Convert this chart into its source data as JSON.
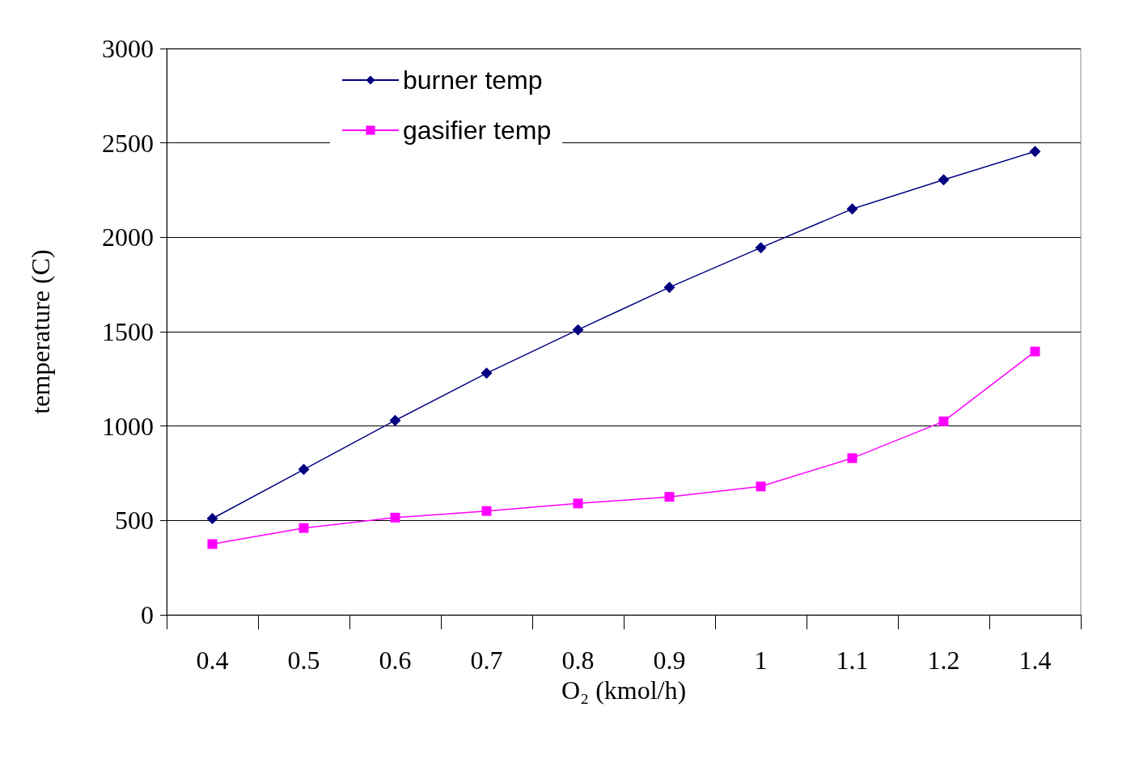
{
  "chart_data": {
    "type": "line",
    "xlabel": "O₂ (kmol/h)",
    "ylabel": "temperature (C)",
    "categories": [
      "0.4",
      "0.5",
      "0.6",
      "0.7",
      "0.8",
      "0.9",
      "1",
      "1.1",
      "1.2",
      "1.4"
    ],
    "series": [
      {
        "name": "burner temp",
        "color": "#000080",
        "marker": "diamond",
        "values": [
          510,
          770,
          1030,
          1280,
          1510,
          1735,
          1945,
          2150,
          2305,
          2455
        ]
      },
      {
        "name": "gasifier temp",
        "color": "#ff00ff",
        "marker": "square",
        "values": [
          375,
          460,
          515,
          550,
          590,
          625,
          680,
          830,
          1025,
          1395
        ]
      }
    ],
    "ylim": [
      0,
      3000
    ],
    "yticks": [
      0,
      500,
      1000,
      1500,
      2000,
      2500,
      3000
    ],
    "grid": "y",
    "legend": "top left"
  }
}
